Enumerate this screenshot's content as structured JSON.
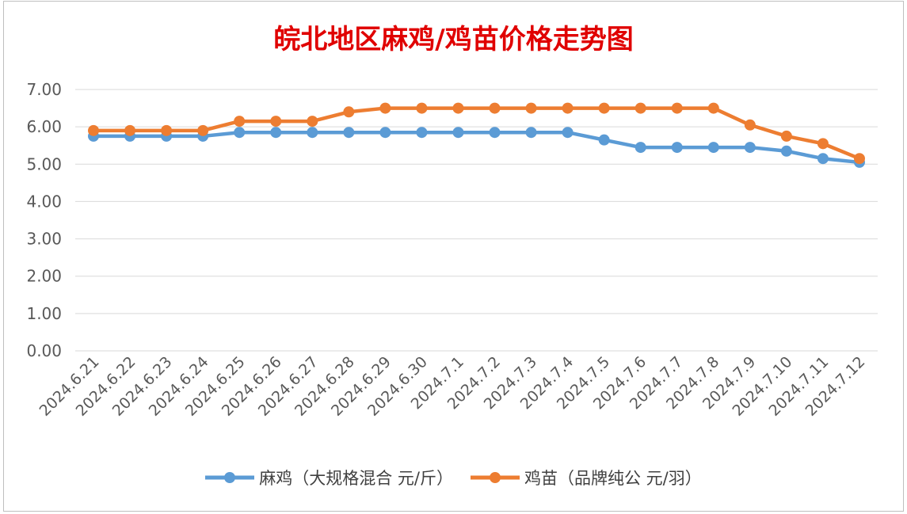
{
  "chart_data": {
    "type": "line",
    "title": "皖北地区麻鸡/鸡苗价格走势图",
    "categories": [
      "2024.6.21",
      "2024.6.22",
      "2024.6.23",
      "2024.6.24",
      "2024.6.25",
      "2024.6.26",
      "2024.6.27",
      "2024.6.28",
      "2024.6.29",
      "2024.6.30",
      "2024.7.1",
      "2024.7.2",
      "2024.7.3",
      "2024.7.4",
      "2024.7.5",
      "2024.7.6",
      "2024.7.7",
      "2024.7.8",
      "2024.7.9",
      "2024.7.10",
      "2024.7.11",
      "2024.7.12"
    ],
    "series": [
      {
        "name": "麻鸡（大规格混合 元/斤）",
        "color": "#5b9bd5",
        "values": [
          5.75,
          5.75,
          5.75,
          5.75,
          5.85,
          5.85,
          5.85,
          5.85,
          5.85,
          5.85,
          5.85,
          5.85,
          5.85,
          5.85,
          5.65,
          5.45,
          5.45,
          5.45,
          5.45,
          5.35,
          5.15,
          5.05
        ]
      },
      {
        "name": "鸡苗（品牌纯公 元/羽）",
        "color": "#ed7d31",
        "values": [
          5.9,
          5.9,
          5.9,
          5.9,
          6.15,
          6.15,
          6.15,
          6.4,
          6.5,
          6.5,
          6.5,
          6.5,
          6.5,
          6.5,
          6.5,
          6.5,
          6.5,
          6.5,
          6.05,
          5.75,
          5.55,
          5.15
        ]
      }
    ],
    "yticks": [
      "0.00",
      "1.00",
      "2.00",
      "3.00",
      "4.00",
      "5.00",
      "6.00",
      "7.00"
    ],
    "ylim": [
      0,
      7
    ],
    "grid": true,
    "legend": "bottom"
  }
}
